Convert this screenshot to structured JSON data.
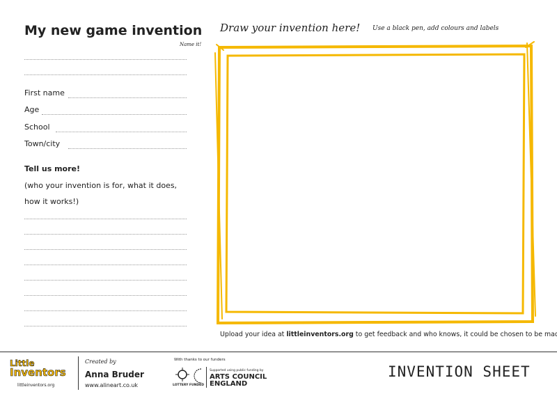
{
  "header": {
    "title": "My new game invention",
    "name_hint": "Name it!"
  },
  "form": {
    "fields": [
      "First name",
      "Age",
      "School",
      "Town/city"
    ],
    "more_title": "Tell us more!",
    "more_lines": [
      "(who your invention is for, what it does,",
      "how it works!)"
    ]
  },
  "drawing": {
    "title": "Draw your invention here!",
    "hint": "Use a black pen, add colours and labels"
  },
  "upload": {
    "before": "Upload your idea at",
    "link": "littleinventors.org",
    "after": "to get feedback and who knows, it could be chosen to be made real!"
  },
  "footer": {
    "logo": {
      "line1": "Little",
      "line2": "Inventors",
      "url": "littleinventors.org"
    },
    "credit": {
      "label": "Created by",
      "name": "Anna Bruder",
      "url": "www.alineart.co.uk"
    },
    "funders": {
      "label": "With thanks to our funders",
      "lottery": "LOTTERY FUNDED",
      "acc_small": "Supported using public funding by",
      "acc_line1": "ARTS COUNCIL",
      "acc_line2": "ENGLAND"
    },
    "sheet": "INVENTION SHEET"
  }
}
